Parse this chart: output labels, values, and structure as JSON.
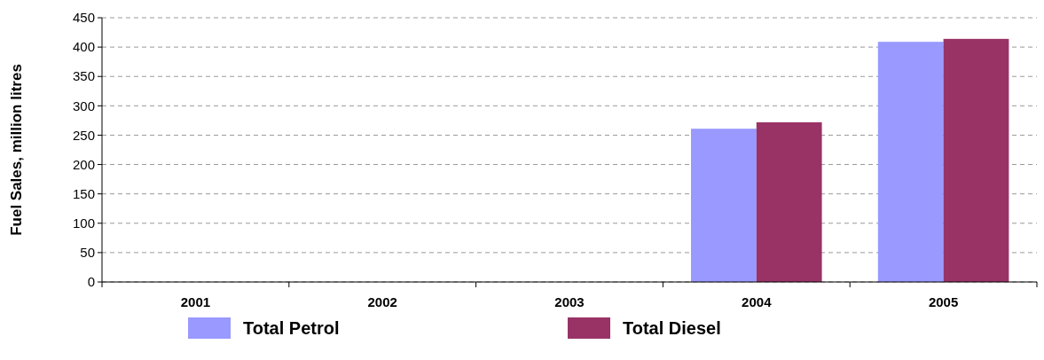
{
  "chart_data": {
    "type": "bar",
    "ylabel": "Fuel Sales, million litres",
    "categories": [
      "2001",
      "2002",
      "2003",
      "2004",
      "2005"
    ],
    "series": [
      {
        "name": "Total Petrol",
        "color": "#9999ff",
        "values": [
          null,
          null,
          null,
          261,
          409
        ]
      },
      {
        "name": "Total Diesel",
        "color": "#993366",
        "values": [
          null,
          null,
          null,
          272,
          414
        ]
      }
    ],
    "ylim": [
      0,
      450
    ],
    "yticks": [
      0,
      50,
      100,
      150,
      200,
      250,
      300,
      350,
      400,
      450
    ],
    "grid": "y",
    "legend": "bottom"
  }
}
